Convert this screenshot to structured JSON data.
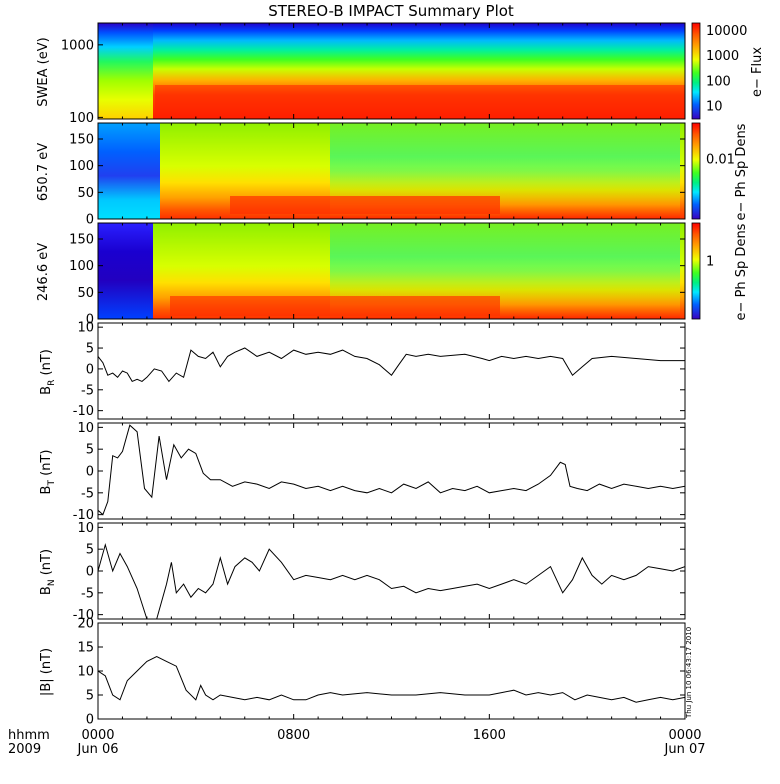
{
  "title": "STEREO-B IMPACT Summary Plot",
  "timestamp_note": "Thu Jun 10 06:43:17 2010",
  "x_axis": {
    "corner_labels": [
      "hhmm",
      "2009"
    ],
    "ticks": [
      {
        "t": 0,
        "top": "0000",
        "bottom": "Jun 06"
      },
      {
        "t": 8,
        "top": "0800",
        "bottom": ""
      },
      {
        "t": 16,
        "top": "1600",
        "bottom": ""
      },
      {
        "t": 24,
        "top": "0000",
        "bottom": "Jun 07"
      }
    ],
    "range_hours": [
      0,
      24
    ]
  },
  "colors": {
    "spectral_low": "#1a00c8",
    "spectral_high": "#ff0000",
    "line": "#000000"
  },
  "chart_data": [
    {
      "type": "heatmap",
      "panel": "swea",
      "ylabel": "SWEA (eV)",
      "y_scale": "log",
      "ylim": [
        95,
        2000
      ],
      "yticks": [
        "1000",
        "100"
      ],
      "colorbar": {
        "label": "e− Flux",
        "ticks": [
          "10000",
          "1000",
          "100",
          "10"
        ],
        "scale": "log",
        "range": [
          3,
          20000
        ]
      }
    },
    {
      "type": "heatmap",
      "panel": "pad650",
      "ylabel": "650.7 eV",
      "y_scale": "linear",
      "ylim": [
        0,
        180
      ],
      "yticks": [
        "150",
        "100",
        "50",
        "0"
      ],
      "colorbar": {
        "label": "e− Ph Sp Dens",
        "ticks": [
          "0.01"
        ],
        "scale": "log"
      }
    },
    {
      "type": "heatmap",
      "panel": "pad246",
      "ylabel": "246.6 eV",
      "y_scale": "linear",
      "ylim": [
        0,
        180
      ],
      "yticks": [
        "150",
        "100",
        "50",
        "0"
      ],
      "colorbar": {
        "label": "e− Ph Sp Dens",
        "ticks": [
          "1"
        ],
        "scale": "log"
      }
    },
    {
      "type": "line",
      "panel": "br",
      "ylabel_main": "B",
      "ylabel_sub": "R",
      "ylabel_unit": " (nT)",
      "ylim": [
        -12,
        11
      ],
      "yticks": [
        10,
        5,
        0,
        -5,
        -10
      ],
      "x": [
        0,
        0.2,
        0.4,
        0.6,
        0.8,
        1,
        1.2,
        1.4,
        1.6,
        1.8,
        2,
        2.3,
        2.6,
        2.9,
        3.2,
        3.5,
        3.8,
        4.1,
        4.4,
        4.7,
        5,
        5.3,
        5.6,
        6,
        6.5,
        7,
        7.5,
        8,
        8.5,
        9,
        9.5,
        10,
        10.5,
        11,
        11.5,
        12,
        12.3,
        12.6,
        13,
        13.5,
        14,
        15,
        15.7,
        16,
        16.5,
        17,
        17.5,
        18,
        18.5,
        19,
        19.4,
        19.8,
        20.2,
        21,
        22,
        23,
        24
      ],
      "y": [
        3,
        1.5,
        -1.5,
        -1,
        -2,
        -0.5,
        -1,
        -3,
        -2.5,
        -3,
        -2,
        0,
        -0.5,
        -3,
        -1,
        -2,
        4.5,
        3,
        2.5,
        4,
        0.5,
        3,
        4,
        5,
        3,
        4,
        2.5,
        4.5,
        3.5,
        4,
        3.5,
        4.5,
        3,
        2.5,
        1,
        -1.5,
        1,
        3.5,
        3,
        3.5,
        3,
        3.5,
        2.5,
        2,
        3,
        2.5,
        3,
        2.5,
        3,
        2.5,
        -1.5,
        0.5,
        2.5,
        3,
        2.5,
        2,
        2
      ]
    },
    {
      "type": "line",
      "panel": "bt",
      "ylabel_main": "B",
      "ylabel_sub": "T",
      "ylabel_unit": " (nT)",
      "ylim": [
        -11,
        11
      ],
      "yticks": [
        10,
        5,
        0,
        -5,
        -10
      ],
      "x": [
        0,
        0.2,
        0.4,
        0.6,
        0.8,
        1,
        1.3,
        1.6,
        1.9,
        2.2,
        2.5,
        2.8,
        3.1,
        3.4,
        3.7,
        4,
        4.3,
        4.6,
        5,
        5.5,
        6,
        6.5,
        7,
        7.5,
        8,
        8.5,
        9,
        9.5,
        10,
        10.5,
        11,
        11.5,
        12,
        12.5,
        13,
        13.5,
        14,
        14.5,
        15,
        15.5,
        16,
        16.5,
        17,
        17.5,
        18,
        18.5,
        18.9,
        19.1,
        19.3,
        19.6,
        20,
        20.5,
        21,
        21.5,
        22,
        22.5,
        23,
        23.5,
        24
      ],
      "y": [
        -9,
        -10,
        -7,
        3.5,
        3,
        4.5,
        10.5,
        9,
        -4,
        -6,
        8,
        -2,
        6,
        3,
        5,
        4,
        -0.5,
        -2,
        -2,
        -3.5,
        -2.5,
        -3,
        -4,
        -2.5,
        -3,
        -4,
        -3.5,
        -4.5,
        -3.5,
        -4.5,
        -5,
        -4,
        -5,
        -3,
        -4,
        -2.5,
        -5,
        -4,
        -4.5,
        -3.5,
        -5,
        -4.5,
        -4,
        -4.5,
        -3,
        -1,
        2,
        1.5,
        -3.5,
        -4,
        -4.5,
        -3,
        -4,
        -3,
        -3.5,
        -4,
        -3.5,
        -4,
        -3.5
      ]
    },
    {
      "type": "line",
      "panel": "bn",
      "ylabel_main": "B",
      "ylabel_sub": "N",
      "ylabel_unit": " (nT)",
      "ylim": [
        -11,
        11
      ],
      "yticks": [
        10,
        5,
        0,
        -5,
        -10
      ],
      "x": [
        0,
        0.3,
        0.6,
        0.9,
        1.2,
        1.6,
        2,
        2.4,
        2.8,
        3,
        3.2,
        3.5,
        3.8,
        4.1,
        4.4,
        4.7,
        5,
        5.3,
        5.6,
        6,
        6.3,
        6.6,
        7,
        7.5,
        8,
        8.5,
        9,
        9.5,
        10,
        10.5,
        11,
        11.5,
        12,
        12.5,
        13,
        13.5,
        14,
        14.5,
        15,
        15.5,
        16,
        16.5,
        17,
        17.5,
        18,
        18.5,
        19,
        19.4,
        19.8,
        20.2,
        20.6,
        21,
        21.5,
        22,
        22.5,
        23,
        23.5,
        24
      ],
      "y": [
        0,
        6,
        0,
        4,
        1,
        -4,
        -11,
        -11,
        -3,
        2,
        -5,
        -3,
        -6,
        -4,
        -5,
        -3,
        3,
        -3,
        1,
        3,
        2,
        0,
        5,
        2,
        -2,
        -1,
        -1.5,
        -2,
        -1,
        -2,
        -1,
        -2,
        -4,
        -3.5,
        -5,
        -4,
        -4.5,
        -4,
        -3.5,
        -3,
        -4,
        -3,
        -2,
        -3,
        -1,
        1,
        -5,
        -2,
        3,
        -1,
        -3,
        -1,
        -2,
        -1,
        1,
        0.5,
        0,
        1
      ]
    },
    {
      "type": "line",
      "panel": "bmag",
      "ylabel_main": "|B| (nT)",
      "ylim": [
        0,
        20
      ],
      "yticks": [
        20,
        15,
        10,
        5,
        0
      ],
      "x": [
        0,
        0.3,
        0.6,
        0.9,
        1.2,
        1.6,
        2,
        2.4,
        2.8,
        3.2,
        3.6,
        4,
        4.2,
        4.4,
        4.7,
        5,
        5.5,
        6,
        6.5,
        7,
        7.5,
        8,
        8.5,
        9,
        9.5,
        10,
        11,
        12,
        13,
        14,
        15,
        16,
        16.5,
        17,
        17.5,
        18,
        18.5,
        19,
        19.5,
        20,
        20.5,
        21,
        21.5,
        22,
        22.5,
        23,
        23.5,
        24
      ],
      "y": [
        10,
        9,
        5,
        4,
        8,
        10,
        12,
        13,
        12,
        11,
        6,
        4,
        7,
        5,
        4,
        5,
        4.5,
        4,
        4.5,
        4,
        5,
        4,
        4,
        5,
        5.5,
        5,
        5.5,
        5,
        5,
        5.5,
        5,
        5,
        5.5,
        6,
        5,
        5.5,
        5,
        5.5,
        4,
        5,
        4.5,
        4,
        4.5,
        3.5,
        4,
        4.5,
        4,
        4.5
      ]
    }
  ]
}
